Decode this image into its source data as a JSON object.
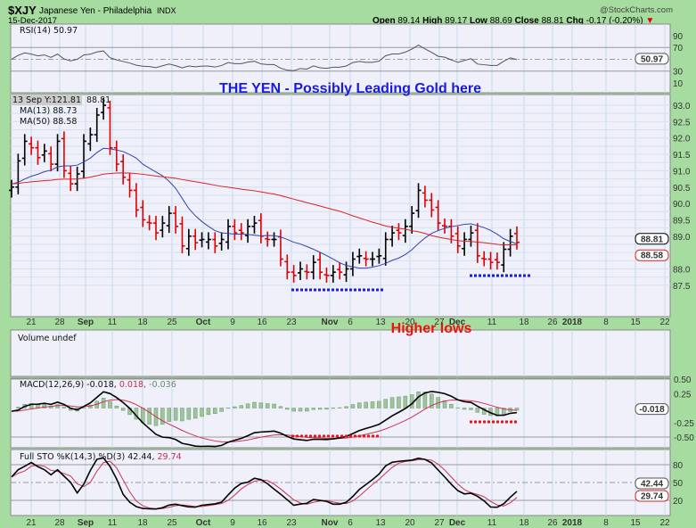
{
  "header": {
    "symbol": "$XJY",
    "name": "Japanese Yen - Philadelphia",
    "exchange": "INDX",
    "date": "15-Dec-2017",
    "brand": "@StockCharts.com",
    "open_label": "Open",
    "open": "89.14",
    "high_label": "High",
    "high": "89.17",
    "low_label": "Low",
    "low": "88.69",
    "close_label": "Close",
    "close": "88.81",
    "chg_label": "Chg",
    "chg": "-0.17 (-0.20%)",
    "down_arrow": "▼"
  },
  "rsi": {
    "label": "RSI(14) 50.97",
    "value_tag": "50.97",
    "ticks": [
      "90",
      "70",
      "30",
      "10"
    ]
  },
  "annotations": {
    "title": "THE YEN - Possibly Leading Gold here",
    "higher_lows": "Higher lows"
  },
  "price": {
    "tooltip": "13 Sep Y:121.81",
    "last": "88.81",
    "ma13_label": "MA(13) 88.73",
    "ma50_label": "MA(50) 88.58",
    "close_tag": "88.81",
    "ma50_tag": "88.58",
    "ticks": [
      "93.0",
      "92.5",
      "92.0",
      "91.5",
      "91.0",
      "90.5",
      "90.0",
      "89.5",
      "89.0",
      "88.0",
      "87.5"
    ]
  },
  "volume": {
    "label": "Volume undef"
  },
  "macd": {
    "label_main": "MACD(12,26,9) -0.018,",
    "label_signal": "0.018,",
    "label_hist": "-0.036",
    "value_tag": "-0.018",
    "ticks": [
      "0.50",
      "0.25",
      "-0.25",
      "-0.50"
    ]
  },
  "sto": {
    "label_main": "Full STO %K(14,3) %D(3) 42.44,",
    "label_d": "29.74",
    "k_tag": "42.44",
    "d_tag": "29.74",
    "ticks": [
      "80",
      "50",
      "20"
    ]
  },
  "xaxis": {
    "labels": [
      "21",
      "28",
      "Sep",
      "11",
      "18",
      "25",
      "Oct",
      "9",
      "16",
      "23",
      "Nov",
      "6",
      "13",
      "20",
      "27",
      "Dec",
      "11",
      "18",
      "26",
      "2018",
      "8",
      "15",
      "22"
    ],
    "bold": [
      "Sep",
      "Oct",
      "Nov",
      "Dec",
      "2018"
    ]
  },
  "colors": {
    "up": "#000000",
    "down": "#e00000",
    "ma13": "#3344aa",
    "ma50": "#dd2222",
    "annot_blue": "#1a1ae0",
    "annot_red": "#ee1111",
    "bg": "#a6dca0",
    "panel": "#eff0fa"
  },
  "chart_data": {
    "type": "line",
    "title": "$XJY Japanese Yen - Philadelphia INDX (daily)",
    "x_range": [
      "2017-08-17",
      "2017-12-15"
    ],
    "ylim": [
      87.3,
      93.3
    ],
    "close": [
      90.5,
      91.3,
      91.9,
      91.7,
      91.4,
      91.6,
      91.2,
      91.9,
      91.0,
      90.6,
      90.9,
      91.9,
      92.1,
      92.7,
      93.0,
      91.7,
      91.2,
      90.8,
      90.4,
      89.8,
      89.5,
      89.4,
      89.1,
      89.4,
      89.7,
      89.3,
      88.7,
      89.0,
      88.8,
      88.9,
      88.9,
      88.7,
      88.9,
      89.3,
      89.1,
      89.1,
      89.3,
      89.4,
      89.0,
      88.9,
      88.9,
      88.3,
      87.9,
      87.8,
      88.0,
      87.9,
      88.2,
      87.9,
      87.8,
      87.9,
      87.9,
      88.0,
      88.3,
      88.4,
      88.3,
      88.3,
      88.4,
      88.9,
      89.1,
      89.1,
      89.3,
      89.7,
      90.4,
      90.1,
      89.8,
      89.4,
      89.3,
      89.0,
      88.7,
      88.9,
      89.1,
      88.4,
      88.3,
      88.2,
      88.2,
      88.6,
      89.0,
      88.81
    ],
    "series_notes": [
      "MA(13)",
      "MA(50)",
      "RSI(14)",
      "MACD(12,26,9)",
      "Full STO %K(14,3) %D(3)"
    ]
  }
}
